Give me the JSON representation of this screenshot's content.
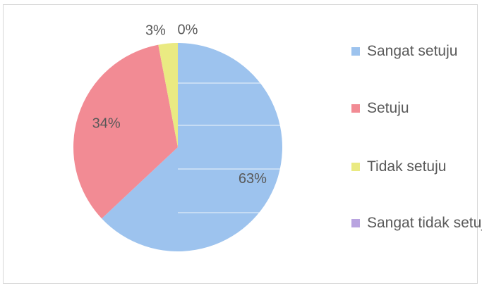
{
  "chart_data": {
    "type": "pie",
    "title": "",
    "categories": [
      "Sangat setuju",
      "Setuju",
      "Tidak setuju",
      "Sangat tidak setuju"
    ],
    "values": [
      63,
      34,
      3,
      0
    ],
    "labels": [
      "63%",
      "34%",
      "3%",
      "0%"
    ],
    "colors": [
      "#9dc3ee",
      "#f28b94",
      "#eaea82",
      "#b9a4e0"
    ],
    "legend_position": "right"
  }
}
